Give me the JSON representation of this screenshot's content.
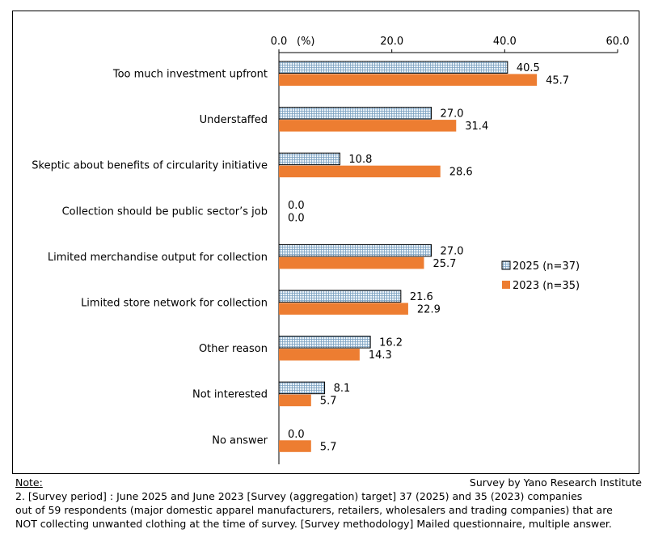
{
  "chart_data": {
    "type": "bar",
    "orientation": "horizontal",
    "axis_unit": "(%)",
    "xlim": [
      0,
      60
    ],
    "ticks": [
      "0.0",
      "20.0",
      "40.0",
      "60.0"
    ],
    "tick_values": [
      0,
      20,
      40,
      60
    ],
    "categories": [
      "Too much investment upfront",
      "Understaffed",
      "Skeptic about benefits of circularity initiative",
      "Collection should be public sector’s job",
      "Limited merchandise output for collection",
      "Limited store network for collection",
      "Other reason",
      "Not interested",
      "No answer"
    ],
    "series": [
      {
        "name": "2025 (n=37)",
        "values": [
          40.5,
          27.0,
          10.8,
          0.0,
          27.0,
          21.6,
          16.2,
          8.1,
          0.0
        ],
        "labels": [
          "40.5",
          "27.0",
          "10.8",
          "0.0",
          "27.0",
          "21.6",
          "16.2",
          "8.1",
          "0.0"
        ],
        "color": "#dde9f3",
        "pattern": "grid"
      },
      {
        "name": "2023 (n=35)",
        "values": [
          45.7,
          31.4,
          28.6,
          0.0,
          25.7,
          22.9,
          14.3,
          5.7,
          5.7
        ],
        "labels": [
          "45.7",
          "31.4",
          "28.6",
          "0.0",
          "25.7",
          "22.9",
          "14.3",
          "5.7",
          "5.7"
        ],
        "color": "#ed7d31",
        "pattern": "solid"
      }
    ],
    "legend_position": "right"
  },
  "notes": {
    "heading": "Note:",
    "credit": "Survey by Yano Research Institute",
    "lines": [
      "2. [Survey period] : June 2025 and June 2023 [Survey  (aggregation) target] 37 (2025) and 35 (2023) companies",
      "out of 59 respondents (major domestic apparel manufacturers, retailers, wholesalers and trading companies) that are",
      "NOT collecting unwanted clothing at the time of survey. [Survey methodology] Mailed questionnaire, multiple answer."
    ]
  }
}
